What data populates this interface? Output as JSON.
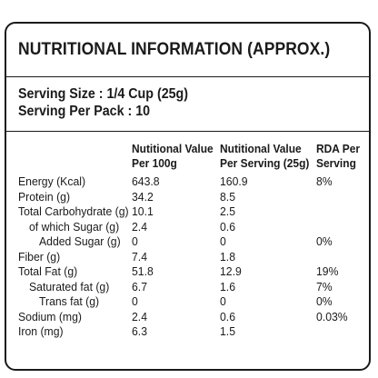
{
  "panel": {
    "title": "NUTRITIONAL INFORMATION (APPROX.)",
    "serving_size": "Serving Size : 1/4 Cup (25g)",
    "serving_per_pack": "Serving Per Pack : 10"
  },
  "table": {
    "headers": {
      "per_100g": [
        "Nutitional Value",
        "Per 100g"
      ],
      "per_serving": [
        "Nutitional Value",
        "Per Serving (25g)"
      ],
      "rda": [
        "RDA Per",
        "Serving"
      ]
    },
    "rows": [
      {
        "name": "Energy (Kcal)",
        "per_100g": "643.8",
        "per_serving": "160.9",
        "rda": "8%"
      },
      {
        "name": "Protein (g)",
        "per_100g": "34.2",
        "per_serving": "8.5",
        "rda": ""
      },
      {
        "name": "Total Carbohydrate (g)",
        "per_100g": "10.1",
        "per_serving": "2.5",
        "rda": ""
      },
      {
        "name": "of which Sugar (g)",
        "per_100g": "2.4",
        "per_serving": "0.6",
        "rda": ""
      },
      {
        "name": "Added Sugar (g)",
        "per_100g": "0",
        "per_serving": "0",
        "rda": "0%"
      },
      {
        "name": "Fiber (g)",
        "per_100g": "7.4",
        "per_serving": "1.8",
        "rda": ""
      },
      {
        "name": "Total Fat (g)",
        "per_100g": "51.8",
        "per_serving": "12.9",
        "rda": "19%"
      },
      {
        "name": "Saturated fat (g)",
        "per_100g": "6.7",
        "per_serving": "1.6",
        "rda": "7%"
      },
      {
        "name": "Trans fat (g)",
        "per_100g": "0",
        "per_serving": "0",
        "rda": "0%"
      },
      {
        "name": "Sodium (mg)",
        "per_100g": "2.4",
        "per_serving": "0.6",
        "rda": "0.03%"
      },
      {
        "name": "Iron (mg)",
        "per_100g": "6.3",
        "per_serving": "1.5",
        "rda": ""
      }
    ]
  }
}
